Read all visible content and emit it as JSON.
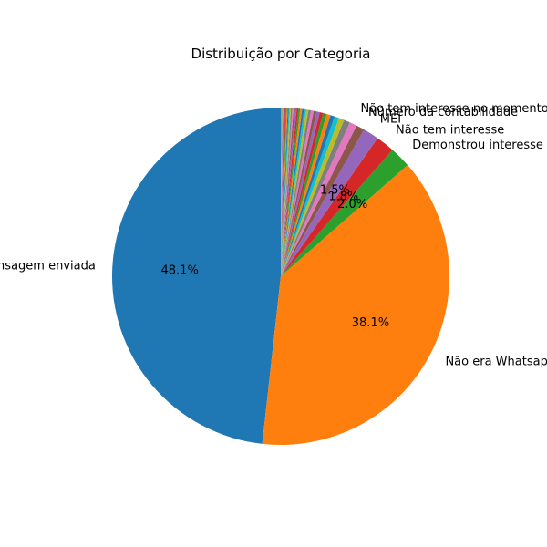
{
  "chart_data": {
    "type": "pie",
    "title": "Distribuição por Categoria",
    "start_angle": 90,
    "direction": "counterclockwise",
    "slices": [
      {
        "label": "Mensagem enviada",
        "value": 48.1,
        "color": "#1f77b4",
        "pct_label": "48.1%"
      },
      {
        "label": "Não era Whatsapp",
        "value": 38.1,
        "color": "#ff7f0e",
        "pct_label": "38.1%"
      },
      {
        "label": "Demonstrou interesse",
        "value": 2.0,
        "color": "#2ca02c",
        "pct_label": "2.0%"
      },
      {
        "label": "Não tem interesse",
        "value": 1.8,
        "color": "#d62728",
        "pct_label": "1.8%"
      },
      {
        "label": "MEI",
        "value": 1.5,
        "color": "#9467bd",
        "pct_label": "1.5%"
      },
      {
        "label": "Número da contabilidade",
        "value": 0.8,
        "color": "#8c564b",
        "pct_label": ""
      },
      {
        "label": "Não tem interesse no momento",
        "value": 0.7,
        "color": "#e377c2",
        "pct_label": ""
      },
      {
        "label": "",
        "value": 0.6,
        "color": "#7f7f7f",
        "pct_label": ""
      },
      {
        "label": "",
        "value": 0.5,
        "color": "#bcbd22",
        "pct_label": ""
      },
      {
        "label": "",
        "value": 0.45,
        "color": "#17becf",
        "pct_label": ""
      },
      {
        "label": "",
        "value": 0.4,
        "color": "#1f77b4",
        "pct_label": ""
      },
      {
        "label": "",
        "value": 0.38,
        "color": "#ff7f0e",
        "pct_label": ""
      },
      {
        "label": "",
        "value": 0.35,
        "color": "#2ca02c",
        "pct_label": ""
      },
      {
        "label": "",
        "value": 0.32,
        "color": "#d62728",
        "pct_label": ""
      },
      {
        "label": "",
        "value": 0.3,
        "color": "#9467bd",
        "pct_label": ""
      },
      {
        "label": "",
        "value": 0.28,
        "color": "#8c564b",
        "pct_label": ""
      },
      {
        "label": "",
        "value": 0.26,
        "color": "#e377c2",
        "pct_label": ""
      },
      {
        "label": "",
        "value": 0.24,
        "color": "#7f7f7f",
        "pct_label": ""
      },
      {
        "label": "",
        "value": 0.22,
        "color": "#bcbd22",
        "pct_label": ""
      },
      {
        "label": "",
        "value": 0.2,
        "color": "#17becf",
        "pct_label": ""
      },
      {
        "label": "",
        "value": 0.19,
        "color": "#1f77b4",
        "pct_label": ""
      },
      {
        "label": "",
        "value": 0.18,
        "color": "#ff7f0e",
        "pct_label": ""
      },
      {
        "label": "",
        "value": 0.17,
        "color": "#2ca02c",
        "pct_label": ""
      },
      {
        "label": "",
        "value": 0.16,
        "color": "#d62728",
        "pct_label": ""
      },
      {
        "label": "",
        "value": 0.15,
        "color": "#9467bd",
        "pct_label": ""
      },
      {
        "label": "",
        "value": 0.14,
        "color": "#8c564b",
        "pct_label": ""
      },
      {
        "label": "",
        "value": 0.13,
        "color": "#e377c2",
        "pct_label": ""
      },
      {
        "label": "",
        "value": 0.12,
        "color": "#7f7f7f",
        "pct_label": ""
      },
      {
        "label": "",
        "value": 0.11,
        "color": "#bcbd22",
        "pct_label": ""
      },
      {
        "label": "",
        "value": 0.1,
        "color": "#17becf",
        "pct_label": ""
      },
      {
        "label": "",
        "value": 0.1,
        "color": "#1f77b4",
        "pct_label": ""
      },
      {
        "label": "",
        "value": 0.09,
        "color": "#ff7f0e",
        "pct_label": ""
      },
      {
        "label": "",
        "value": 0.09,
        "color": "#2ca02c",
        "pct_label": ""
      },
      {
        "label": "",
        "value": 0.08,
        "color": "#d62728",
        "pct_label": ""
      },
      {
        "label": "",
        "value": 0.08,
        "color": "#9467bd",
        "pct_label": ""
      },
      {
        "label": "",
        "value": 0.07,
        "color": "#8c564b",
        "pct_label": ""
      },
      {
        "label": "",
        "value": 0.07,
        "color": "#e377c2",
        "pct_label": ""
      },
      {
        "label": "",
        "value": 0.06,
        "color": "#7f7f7f",
        "pct_label": ""
      },
      {
        "label": "",
        "value": 0.06,
        "color": "#bcbd22",
        "pct_label": ""
      },
      {
        "label": "",
        "value": 0.05,
        "color": "#17becf",
        "pct_label": ""
      }
    ]
  }
}
